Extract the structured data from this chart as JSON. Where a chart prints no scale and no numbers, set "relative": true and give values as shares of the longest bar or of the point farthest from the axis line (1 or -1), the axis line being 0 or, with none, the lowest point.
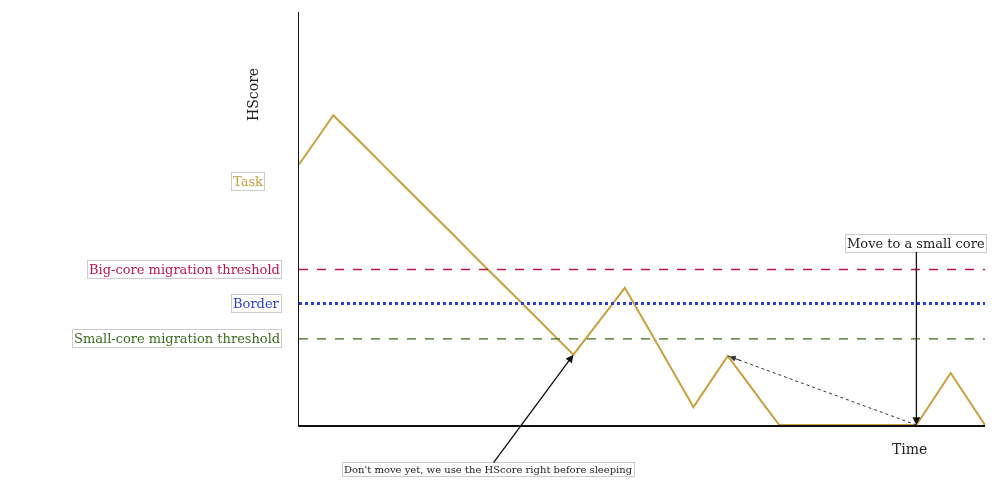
{
  "chart_data": {
    "type": "line",
    "relative": true,
    "xlabel": "Time",
    "ylabel": "HScore",
    "legend": false,
    "marker": "none",
    "line_style": "solid",
    "categories": [
      null,
      null,
      null,
      null,
      null,
      null,
      null,
      null,
      null,
      null,
      null,
      null,
      null,
      null,
      null,
      null,
      null,
      null,
      null,
      null,
      null,
      null,
      null,
      null,
      null,
      null,
      null,
      null,
      null,
      null,
      null,
      null,
      null,
      null,
      null,
      null,
      null,
      null,
      null,
      null,
      null
    ],
    "series": [
      {
        "name": "Task",
        "color": "#c9a040",
        "values": [
          0.841,
          0.92,
          1,
          0.945,
          0.89,
          0.834,
          0.779,
          0.724,
          0.669,
          0.614,
          0.558,
          0.503,
          0.448,
          0.393,
          0.338,
          0.282,
          0.227,
          0.299,
          0.371,
          0.443,
          0.347,
          0.251,
          0.154,
          0.058,
          0.141,
          0.223,
          0.149,
          0.074,
          0,
          0,
          0,
          0,
          0,
          0,
          0,
          0,
          0,
          0.084,
          0.168,
          0.084,
          0
        ]
      }
    ],
    "ref_lines": [
      {
        "axis": "y",
        "value": 0.502,
        "label": "Big-core migration threshold",
        "color": "#c0174a",
        "line_style": "dashed"
      },
      {
        "axis": "y",
        "value": 0.392,
        "label": "Border",
        "color": "#2a3fd8",
        "line_style": "dotted"
      },
      {
        "axis": "y",
        "value": 0.278,
        "label": "Small-core migration threshold",
        "color": "#3a6b1e",
        "line_style": "dashed"
      }
    ],
    "annotations": [
      "Move to a small core",
      "Don't move yet, we use the HScore right before sleeping"
    ]
  }
}
